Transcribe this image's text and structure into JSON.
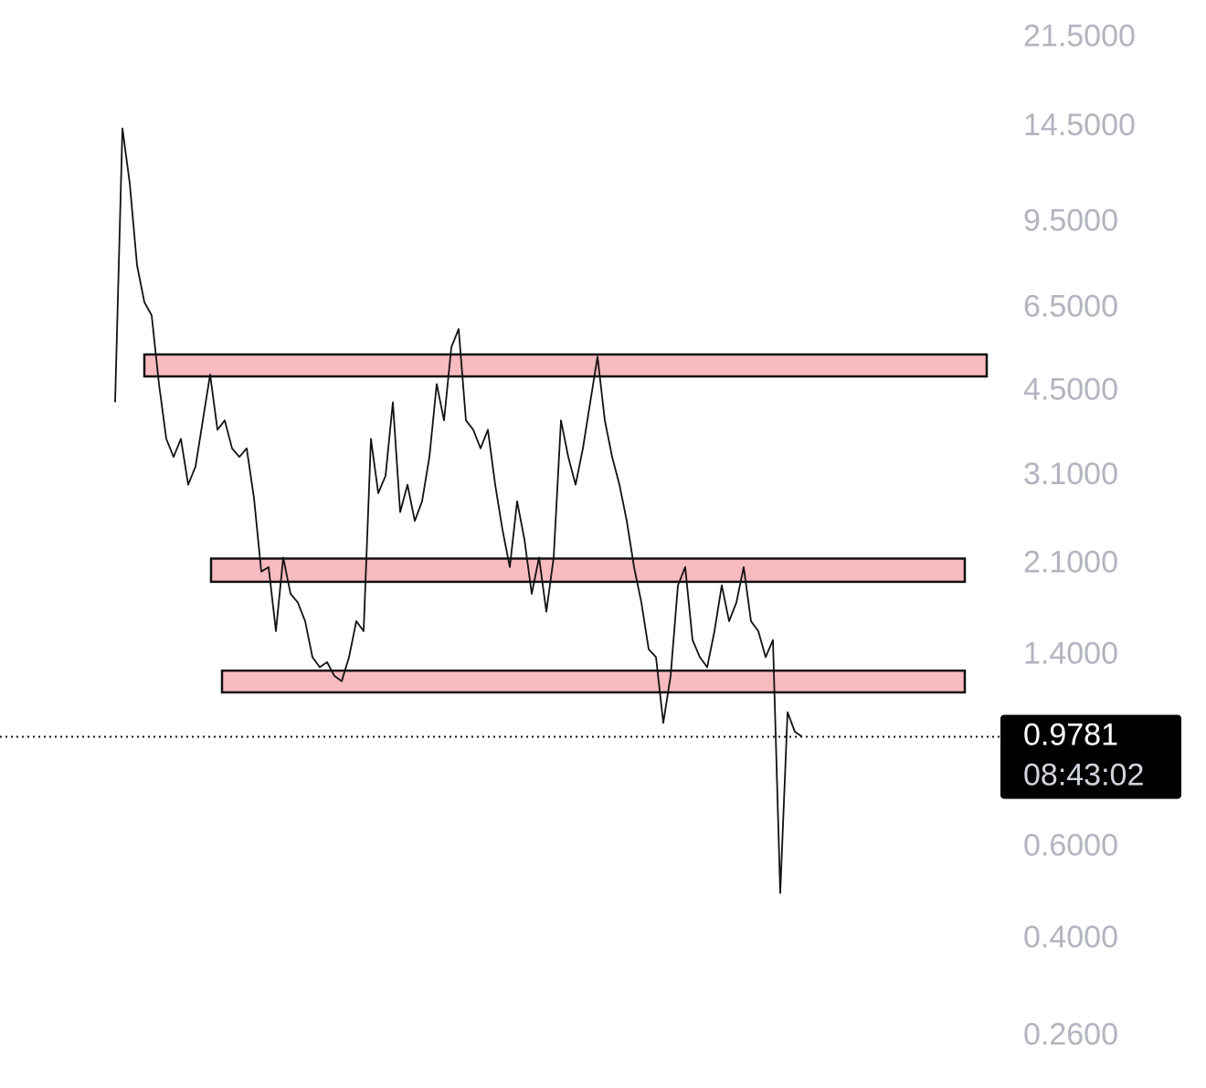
{
  "chart_data": {
    "type": "line",
    "log_scale": true,
    "color": "#111111",
    "values": [
      4.29,
      14.4,
      11.3,
      7.86,
      6.68,
      6.3,
      4.65,
      3.65,
      3.37,
      3.65,
      2.98,
      3.23,
      3.96,
      4.85,
      3.8,
      3.96,
      3.5,
      3.37,
      3.5,
      2.81,
      2.03,
      2.07,
      1.56,
      2.16,
      1.84,
      1.77,
      1.63,
      1.39,
      1.33,
      1.36,
      1.28,
      1.25,
      1.39,
      1.63,
      1.56,
      3.65,
      2.87,
      3.1,
      4.29,
      2.64,
      2.98,
      2.54,
      2.77,
      3.37,
      4.65,
      3.96,
      5.47,
      5.93,
      3.96,
      3.8,
      3.5,
      3.8,
      2.98,
      2.44,
      2.07,
      2.77,
      2.34,
      1.84,
      2.16,
      1.7,
      2.16,
      3.96,
      3.37,
      2.98,
      3.5,
      4.29,
      5.25,
      3.96,
      3.37,
      2.98,
      2.54,
      2.07,
      1.77,
      1.44,
      1.39,
      1.04,
      1.28,
      1.91,
      2.07,
      1.5,
      1.39,
      1.33,
      1.56,
      1.91,
      1.63,
      1.77,
      2.07,
      1.63,
      1.56,
      1.39,
      1.5,
      0.49,
      1.09,
      1.0,
      0.9781
    ],
    "ylim": [
      0.207,
      25.4
    ],
    "yticks": [
      {
        "value": 21.5,
        "label": "21.5000"
      },
      {
        "value": 14.5,
        "label": "14.5000"
      },
      {
        "value": 9.5,
        "label": "9.5000"
      },
      {
        "value": 6.5,
        "label": "6.5000"
      },
      {
        "value": 4.5,
        "label": "4.5000"
      },
      {
        "value": 3.1,
        "label": "3.1000"
      },
      {
        "value": 2.1,
        "label": "2.1000"
      },
      {
        "value": 1.4,
        "label": "1.4000"
      },
      {
        "value": 0.6,
        "label": "0.6000"
      },
      {
        "value": 0.4,
        "label": "0.4000"
      },
      {
        "value": 0.26,
        "label": "0.2600"
      }
    ],
    "zones": [
      {
        "low": 4.81,
        "high": 5.3,
        "color": "#f8bbbf"
      },
      {
        "low": 1.94,
        "high": 2.15,
        "color": "#f8bbbf"
      },
      {
        "low": 1.19,
        "high": 1.31,
        "color": "#f8bbbf"
      }
    ],
    "last_price": {
      "value": 0.9781,
      "label": "0.9781",
      "countdown": "08:43:02"
    }
  }
}
